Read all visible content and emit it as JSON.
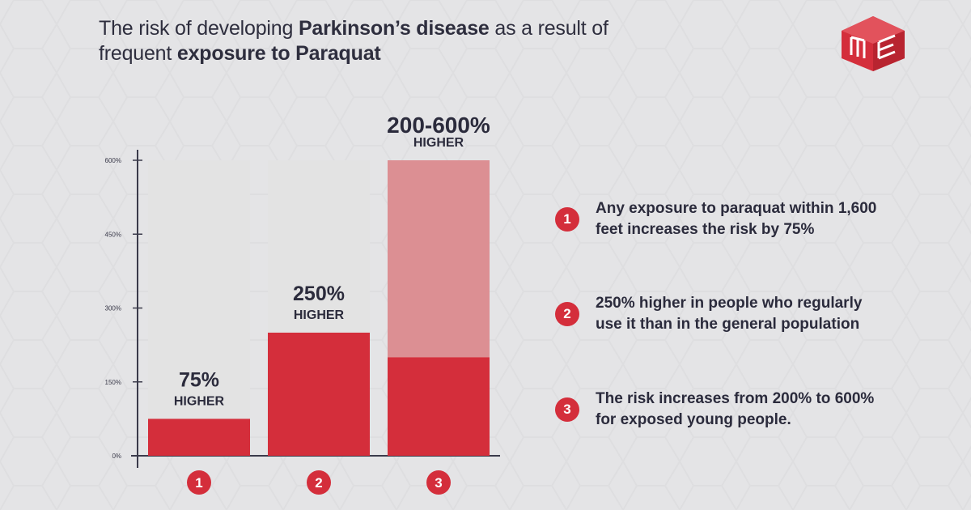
{
  "title": {
    "part1": "The risk of developing ",
    "bold1": "Parkinson’s disease",
    "part2": " as a result of frequent ",
    "bold2": "exposure to Paraquat"
  },
  "colors": {
    "accent": "#d42e3b",
    "range_fill": "#dc8f93",
    "bar_track": "#e3e3e3",
    "text_dark": "#2b2b3c",
    "background": "#e4e4e6"
  },
  "logo": {
    "icon": "cube-logo-icon"
  },
  "chart_data": {
    "type": "bar",
    "categories": [
      "1",
      "2",
      "3"
    ],
    "values": [
      75,
      250,
      200
    ],
    "range_upper": [
      null,
      null,
      600
    ],
    "ylim": [
      0,
      600
    ],
    "yticks": [
      "0%",
      "150%",
      "300%",
      "450%",
      "600%"
    ],
    "ytick_values": [
      0,
      150,
      300,
      450,
      600
    ],
    "bar_labels": [
      {
        "value": "75%",
        "sub": "HIGHER"
      },
      {
        "value": "250%",
        "sub": "HIGHER"
      },
      {
        "value": "200-600%",
        "sub": "HIGHER"
      }
    ]
  },
  "legend": [
    {
      "num": "1",
      "text": "Any exposure to paraquat within 1,600 feet increases the risk by 75%"
    },
    {
      "num": "2",
      "text": "250% higher in people who regularly use it than in the general population"
    },
    {
      "num": "3",
      "text": "The risk increases from 200% to 600% for exposed young people."
    }
  ]
}
